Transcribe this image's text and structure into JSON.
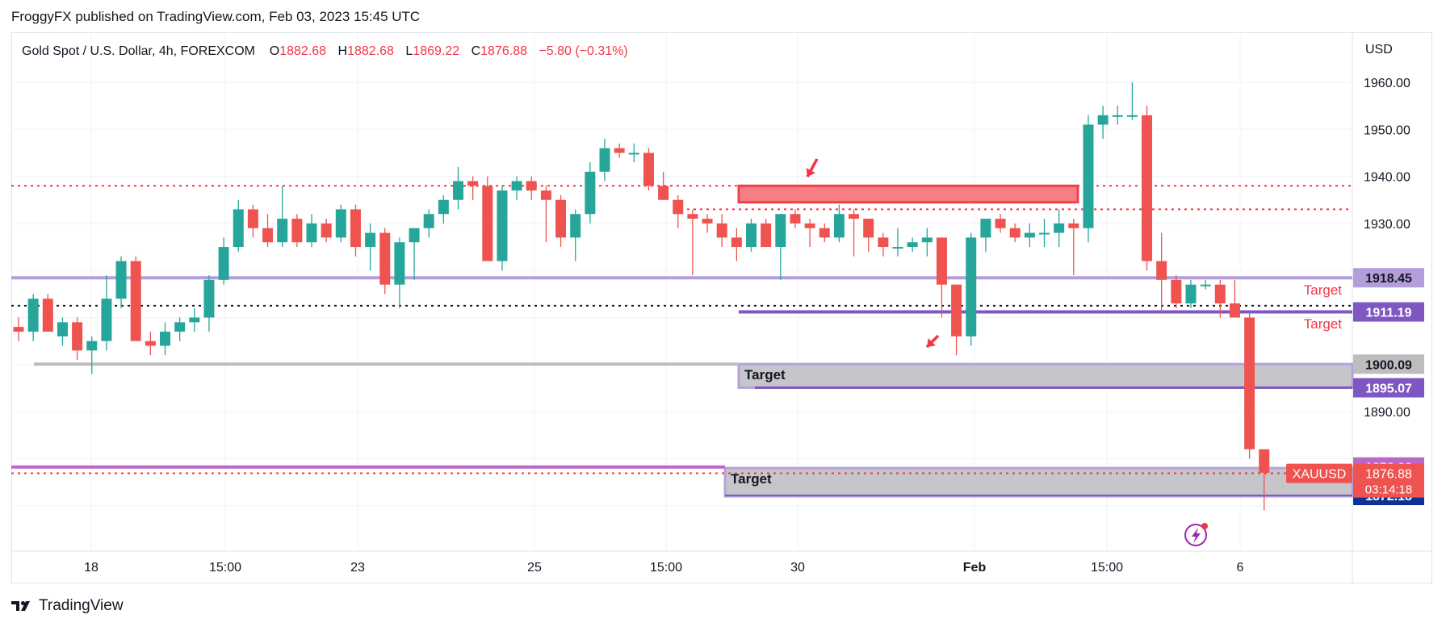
{
  "publisher_line": "FroggyFX published on TradingView.com, Feb 03, 2023 15:45 UTC",
  "brand": {
    "logo_icon": "tradingview-logo-icon",
    "name": "TradingView"
  },
  "legend": {
    "symbol": "Gold Spot / U.S. Dollar, 4h, FOREXCOM",
    "o_label": "O",
    "o": "1882.68",
    "h_label": "H",
    "h": "1882.68",
    "l_label": "L",
    "l": "1869.22",
    "c_label": "C",
    "c": "1876.88",
    "change": "−5.80 (−0.31%)"
  },
  "colors": {
    "up": "#26a69a",
    "down": "#ef5350",
    "red_level": "#f23645",
    "purple": "#7e57c2",
    "lavender": "#b39ddb",
    "gray_zone": "#bdbdbd",
    "navy": "#0d3296"
  },
  "chart_data": {
    "type": "candlestick",
    "ylabel": "USD",
    "y_ticks": [
      "1960.00",
      "1950.00",
      "1940.00",
      "1930.00",
      "1890.00"
    ],
    "ylim": [
      1864,
      1966
    ],
    "x_tick_labels": [
      "18",
      "15:00",
      "23",
      "25",
      "15:00",
      "30",
      "Feb",
      "15:00",
      "6"
    ],
    "candles": [
      [
        1908,
        1910,
        1905,
        1907
      ],
      [
        1907,
        1915,
        1905,
        1914
      ],
      [
        1914,
        1915,
        1907,
        1907
      ],
      [
        1906,
        1910,
        1904,
        1909
      ],
      [
        1909,
        1910,
        1901,
        1903
      ],
      [
        1903,
        1906,
        1898,
        1905
      ],
      [
        1905,
        1919,
        1903,
        1914
      ],
      [
        1914,
        1923,
        1912,
        1922
      ],
      [
        1922,
        1923,
        1905,
        1905
      ],
      [
        1905,
        1907,
        1902,
        1904
      ],
      [
        1904,
        1909,
        1902,
        1907
      ],
      [
        1907,
        1910,
        1905,
        1909
      ],
      [
        1909,
        1912,
        1907,
        1910
      ],
      [
        1910,
        1919,
        1907,
        1918
      ],
      [
        1918,
        1927,
        1917,
        1925
      ],
      [
        1925,
        1935,
        1924,
        1933
      ],
      [
        1933,
        1934,
        1927,
        1929
      ],
      [
        1929,
        1932,
        1925,
        1926
      ],
      [
        1926,
        1938,
        1925,
        1931
      ],
      [
        1931,
        1932,
        1925,
        1926
      ],
      [
        1926,
        1932,
        1925,
        1930
      ],
      [
        1930,
        1931,
        1926,
        1927
      ],
      [
        1927,
        1934,
        1926,
        1933
      ],
      [
        1933,
        1934,
        1923,
        1925
      ],
      [
        1925,
        1930,
        1920,
        1928
      ],
      [
        1928,
        1929,
        1915,
        1917
      ],
      [
        1917,
        1927,
        1912,
        1926
      ],
      [
        1926,
        1929,
        1918,
        1929
      ],
      [
        1929,
        1933,
        1927,
        1932
      ],
      [
        1932,
        1936,
        1930,
        1935
      ],
      [
        1935,
        1942,
        1933,
        1939
      ],
      [
        1939,
        1940,
        1935,
        1938
      ],
      [
        1938,
        1940,
        1922,
        1922
      ],
      [
        1922,
        1938,
        1920,
        1937
      ],
      [
        1937,
        1940,
        1935,
        1939
      ],
      [
        1939,
        1940,
        1935,
        1937
      ],
      [
        1937,
        1938,
        1926,
        1935
      ],
      [
        1935,
        1936,
        1925,
        1927
      ],
      [
        1927,
        1933,
        1922,
        1932
      ],
      [
        1932,
        1943,
        1930,
        1941
      ],
      [
        1941,
        1948,
        1939,
        1946
      ],
      [
        1946,
        1947,
        1944,
        1945
      ],
      [
        1945,
        1947,
        1943,
        1945
      ],
      [
        1945,
        1946,
        1937,
        1938
      ],
      [
        1938,
        1941,
        1935,
        1935
      ],
      [
        1935,
        1936,
        1929,
        1932
      ],
      [
        1932,
        1933,
        1919,
        1931
      ],
      [
        1931,
        1932,
        1928,
        1930
      ],
      [
        1930,
        1932,
        1925,
        1927
      ],
      [
        1927,
        1929,
        1922,
        1925
      ],
      [
        1925,
        1931,
        1924,
        1930
      ],
      [
        1930,
        1931,
        1925,
        1925
      ],
      [
        1925,
        1932,
        1918,
        1932
      ],
      [
        1932,
        1933,
        1929,
        1930
      ],
      [
        1930,
        1931,
        1925,
        1929
      ],
      [
        1929,
        1930,
        1926,
        1927
      ],
      [
        1927,
        1934,
        1926,
        1932
      ],
      [
        1932,
        1933,
        1923,
        1931
      ],
      [
        1931,
        1931,
        1924,
        1927
      ],
      [
        1927,
        1928,
        1923,
        1925
      ],
      [
        1925,
        1929,
        1923,
        1925
      ],
      [
        1925,
        1927,
        1924,
        1926
      ],
      [
        1926,
        1929,
        1923,
        1927
      ],
      [
        1927,
        1927,
        1910,
        1917
      ],
      [
        1917,
        1917,
        1902,
        1906
      ],
      [
        1906,
        1928,
        1904,
        1927
      ],
      [
        1927,
        1931,
        1924,
        1931
      ],
      [
        1931,
        1932,
        1928,
        1929
      ],
      [
        1929,
        1930,
        1926,
        1927
      ],
      [
        1927,
        1930,
        1925,
        1928
      ],
      [
        1928,
        1931,
        1925,
        1928
      ],
      [
        1928,
        1933,
        1925,
        1930
      ],
      [
        1930,
        1931,
        1919,
        1929
      ],
      [
        1929,
        1953,
        1926,
        1951
      ],
      [
        1951,
        1955,
        1948,
        1953
      ],
      [
        1953,
        1955,
        1951,
        1953
      ],
      [
        1953,
        1960,
        1952,
        1953
      ],
      [
        1953,
        1955,
        1920,
        1922
      ],
      [
        1922,
        1928,
        1911,
        1918
      ],
      [
        1918,
        1919,
        1912,
        1913
      ],
      [
        1913,
        1918,
        1912,
        1917
      ],
      [
        1917,
        1918,
        1916,
        1917
      ],
      [
        1917,
        1918,
        1910,
        1913
      ],
      [
        1913,
        1918,
        1910,
        1910
      ],
      [
        1910,
        1911,
        1880,
        1882
      ],
      [
        1882,
        1882,
        1869,
        1877
      ]
    ],
    "levels": [
      {
        "price": 1938,
        "style": "dotted",
        "color": "#f23645"
      },
      {
        "price": 1933,
        "style": "dotted",
        "color": "#f23645"
      },
      {
        "price": 1912.5,
        "style": "dotted",
        "color": "#131722"
      },
      {
        "price": 1876.9,
        "style": "dotted",
        "color": "#f23645"
      },
      {
        "price": 1918.45,
        "style": "solid",
        "color": "#b39ddb"
      },
      {
        "price": 1911.19,
        "style": "solid",
        "color": "#7e57c2"
      },
      {
        "price": 1900.09,
        "style": "solid",
        "color": "#bdbdbd"
      },
      {
        "price": 1878.23,
        "style": "solid",
        "color": "#ba68c8"
      }
    ],
    "zones": [
      {
        "label": "",
        "top": 1938,
        "bottom": 1934.5,
        "fill": "#f7797e",
        "stroke": "#f23645"
      },
      {
        "label": "Target",
        "top": 1900.1,
        "bottom": 1895.1,
        "fill": "#c4c4c8",
        "stroke": "#b39ddb"
      },
      {
        "label": "Target",
        "top": 1878,
        "bottom": 1872,
        "fill": "#c4c4c8",
        "stroke": "#b39ddb"
      }
    ],
    "target_labels": [
      "Target",
      "Target"
    ],
    "price_tags": [
      {
        "value": "1918.45",
        "bg": "#b39ddb",
        "fg": "#131722"
      },
      {
        "value": "1911.19",
        "bg": "#7e57c2",
        "fg": "#ffffff"
      },
      {
        "value": "1900.09",
        "bg": "#bdbdbd",
        "fg": "#131722"
      },
      {
        "value": "1895.07",
        "bg": "#7e57c2",
        "fg": "#ffffff"
      },
      {
        "value": "1878.23",
        "bg": "#ba68c8",
        "fg": "#ffffff"
      },
      {
        "value": "1872.18",
        "bg": "#0d3296",
        "fg": "#ffffff"
      }
    ],
    "current": {
      "symbol": "XAUUSD",
      "price": "1876.88",
      "countdown": "03:14:18"
    }
  }
}
